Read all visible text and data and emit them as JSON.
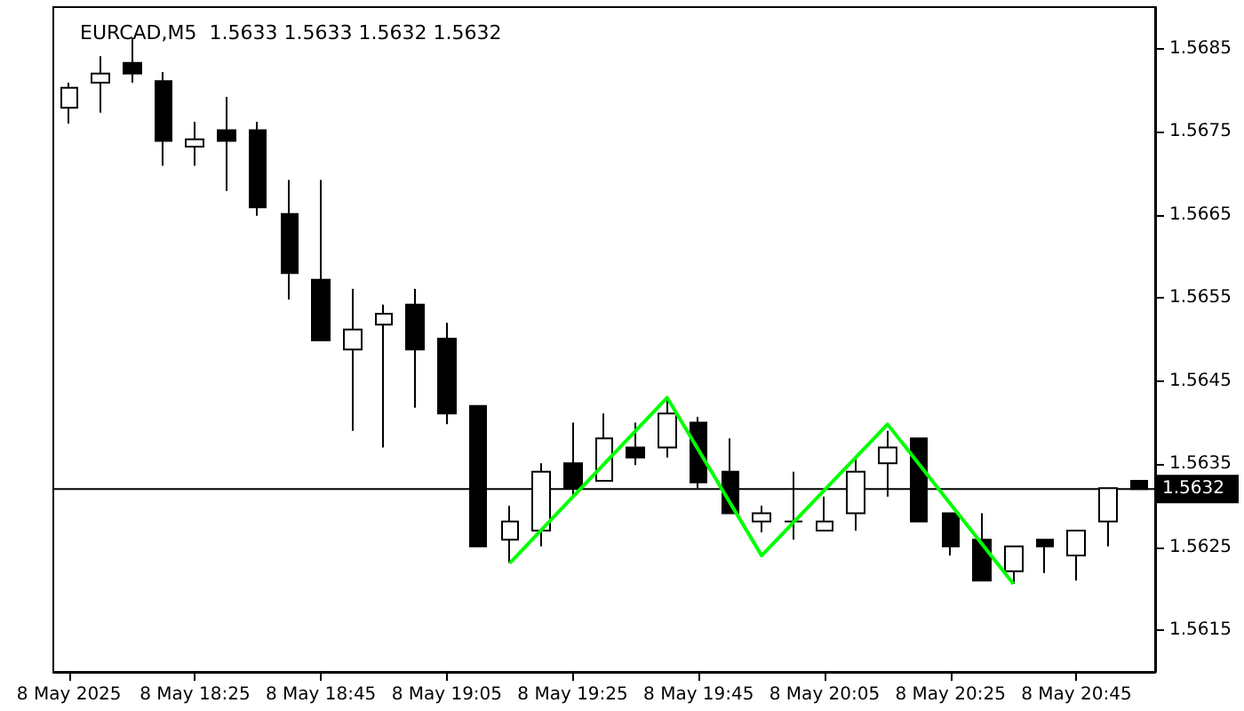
{
  "chart_data": {
    "type": "candlestick",
    "title": "EURCAD,M5  1.5633 1.5633 1.5632 1.5632",
    "categories": [
      "8 May 2025",
      null,
      null,
      null,
      "8 May 18:25",
      null,
      null,
      null,
      "8 May 18:45",
      null,
      null,
      null,
      "8 May 19:05",
      null,
      null,
      null,
      "8 May 19:25",
      null,
      null,
      null,
      "8 May 19:45",
      null,
      null,
      null,
      "8 May 20:05",
      null,
      null,
      null,
      "8 May 20:25",
      null,
      null,
      null,
      "8 May 20:45",
      null,
      null
    ],
    "ohlc": [
      [
        1.56779,
        1.56809,
        1.5676,
        1.56803
      ],
      [
        1.56809,
        1.56841,
        1.56773,
        1.5682
      ],
      [
        1.56833,
        1.56863,
        1.56809,
        1.5682
      ],
      [
        1.56811,
        1.56822,
        1.56709,
        1.56739
      ],
      [
        1.56732,
        1.56762,
        1.56709,
        1.56741
      ],
      [
        1.56752,
        1.56792,
        1.56679,
        1.56739
      ],
      [
        1.56752,
        1.56762,
        1.56649,
        1.56659
      ],
      [
        1.56651,
        1.56692,
        1.56548,
        1.5658
      ],
      [
        1.56572,
        1.56692,
        1.56499,
        1.56499
      ],
      [
        1.56488,
        1.56561,
        1.5639,
        1.56512
      ],
      [
        1.56518,
        1.56542,
        1.5637,
        1.56531
      ],
      [
        1.56542,
        1.56561,
        1.56418,
        1.56488
      ],
      [
        1.56501,
        1.5652,
        1.56398,
        1.56411
      ],
      [
        1.5642,
        1.5642,
        1.56251,
        1.56251
      ],
      [
        1.56259,
        1.563,
        1.56231,
        1.56281
      ],
      [
        1.5627,
        1.56351,
        1.56251,
        1.56341
      ],
      [
        1.56351,
        1.564,
        1.56311,
        1.56321
      ],
      [
        1.5633,
        1.56411,
        1.5633,
        1.56381
      ],
      [
        1.5637,
        1.564,
        1.56349,
        1.56358
      ],
      [
        1.5637,
        1.5643,
        1.56358,
        1.56411
      ],
      [
        1.564,
        1.56407,
        1.56321,
        1.56328
      ],
      [
        1.56341,
        1.56381,
        1.56291,
        1.56291
      ],
      [
        1.56281,
        1.563,
        1.56268,
        1.56291
      ],
      [
        1.56281,
        1.56341,
        1.56259,
        1.56281
      ],
      [
        1.5627,
        1.56311,
        1.5627,
        1.56281
      ],
      [
        1.56291,
        1.56358,
        1.5627,
        1.56341
      ],
      [
        1.56351,
        1.5639,
        1.56311,
        1.5637
      ],
      [
        1.56381,
        1.56381,
        1.56281,
        1.56281
      ],
      [
        1.56291,
        1.56291,
        1.5624,
        1.56251
      ],
      [
        1.56259,
        1.56291,
        1.5621,
        1.5621
      ],
      [
        1.56221,
        1.56251,
        1.56206,
        1.56251
      ],
      [
        1.56259,
        1.56259,
        1.56219,
        1.56251
      ],
      [
        1.5624,
        1.5627,
        1.5621,
        1.5627
      ],
      [
        1.56281,
        1.56321,
        1.56251,
        1.56321
      ],
      [
        1.5633,
        1.5633,
        1.5632,
        1.5632
      ]
    ],
    "series": [
      {
        "type": "line",
        "color": "#00ff00",
        "values": [
          null,
          null,
          null,
          null,
          null,
          null,
          null,
          null,
          null,
          null,
          null,
          null,
          null,
          null,
          1.56231,
          null,
          null,
          null,
          null,
          1.5643,
          null,
          null,
          1.5624,
          null,
          null,
          null,
          1.56398,
          null,
          null,
          null,
          1.56206,
          null,
          null,
          null,
          null
        ]
      }
    ],
    "ylim": [
      1.561,
      1.569
    ],
    "yticks": [
      1.5615,
      1.5625,
      1.5635,
      1.5645,
      1.5655,
      1.5665,
      1.5675,
      1.5685
    ],
    "ref_lines": [
      {
        "axis": "y",
        "value": 1.5632,
        "label": "1.5632",
        "color": "#000000"
      }
    ],
    "grid": false
  }
}
